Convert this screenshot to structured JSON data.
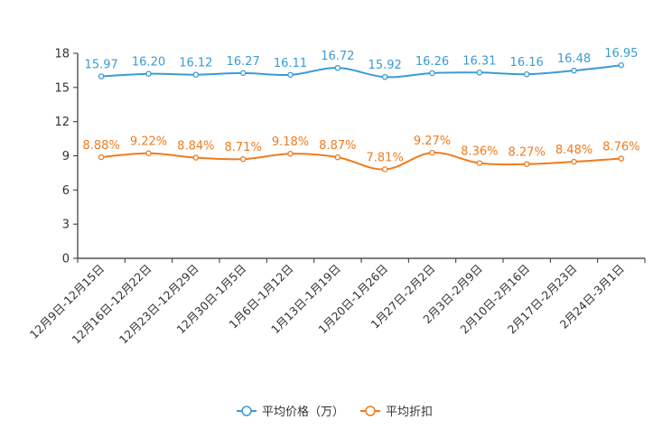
{
  "chart_data": {
    "type": "line",
    "categories": [
      "12月9日-12月15日",
      "12月16日-12月22日",
      "12月23日-12月29日",
      "12月30日-1月5日",
      "1月6日-1月12日",
      "1月13日-1月19日",
      "1月20日-1月26日",
      "1月27日-2月2日",
      "2月3日-2月9日",
      "2月10日-2月16日",
      "2月17日-2月23日",
      "2月24日-3月1日"
    ],
    "series": [
      {
        "name": "平均价格（万）",
        "color": "#3a9bd5",
        "values": [
          15.97,
          16.2,
          16.12,
          16.27,
          16.11,
          16.72,
          15.92,
          16.26,
          16.31,
          16.16,
          16.48,
          16.95
        ],
        "labels": [
          "15.97",
          "16.20",
          "16.12",
          "16.27",
          "16.11",
          "16.72",
          "15.92",
          "16.26",
          "16.31",
          "16.16",
          "16.48",
          "16.95"
        ]
      },
      {
        "name": "平均折扣",
        "color": "#f07b1d",
        "values": [
          8.88,
          9.22,
          8.84,
          8.71,
          9.18,
          8.87,
          7.81,
          9.27,
          8.36,
          8.27,
          8.48,
          8.76
        ],
        "labels": [
          "8.88%",
          "9.22%",
          "8.84%",
          "8.71%",
          "9.18%",
          "8.87%",
          "7.81%",
          "9.27%",
          "8.36%",
          "8.27%",
          "8.48%",
          "8.76%"
        ]
      }
    ],
    "y_ticks": [
      "0",
      "3",
      "6",
      "9",
      "12",
      "15",
      "18"
    ],
    "ylim": [
      0,
      18
    ],
    "title": "",
    "xlabel": "",
    "ylabel": "",
    "grid": false,
    "legend": "bottom-center"
  }
}
